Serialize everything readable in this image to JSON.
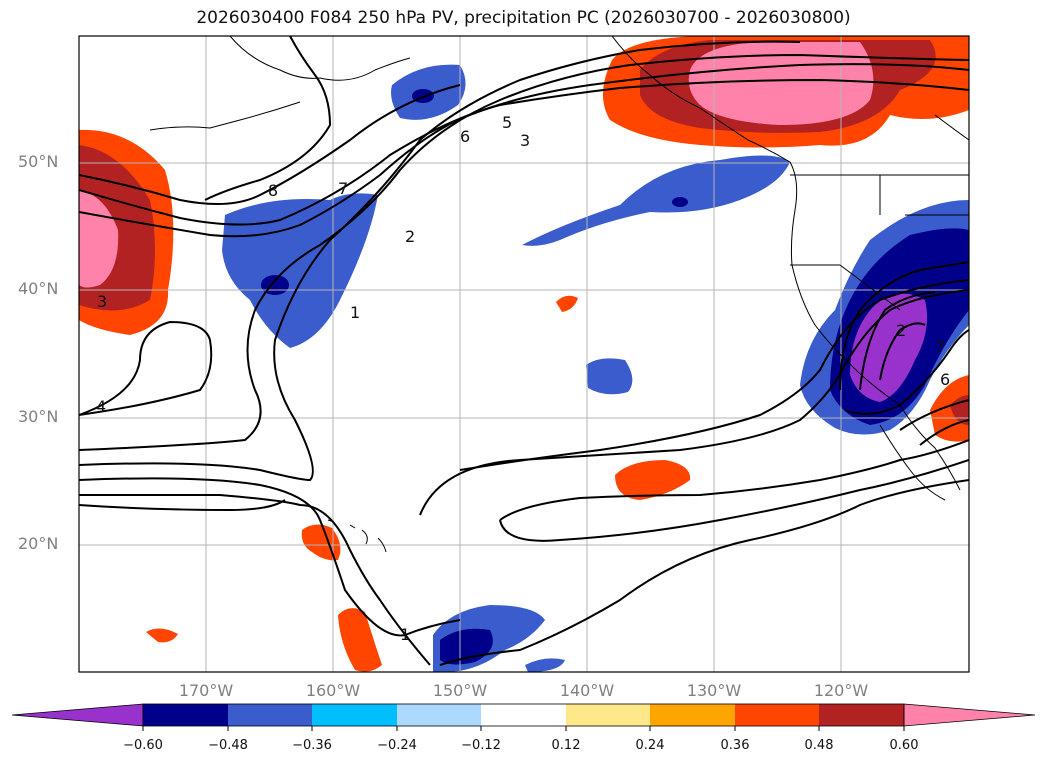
{
  "title": "2026030400 F084 250 hPa PV, precipitation PC (2026030700 - 2026030800)",
  "map": {
    "lat_labels": [
      "50°N",
      "40°N",
      "30°N",
      "20°N"
    ],
    "lon_labels": [
      "170°W",
      "160°W",
      "150°W",
      "140°W",
      "130°W",
      "120°W"
    ],
    "contour_labels": [
      "8",
      "7",
      "6",
      "5",
      "3",
      "2",
      "1",
      "4",
      "3",
      "1",
      "7",
      "6",
      "2"
    ],
    "colors": {
      "neg_extreme": "#9932CC",
      "neg_060": "#00008B",
      "neg_048": "#3A5CCC",
      "neg_036": "#00BFFF",
      "neg_024": "#ADD8FF",
      "pos_012": "#FFE88A",
      "pos_024": "#FFA500",
      "pos_036": "#FF4500",
      "pos_048": "#B22222",
      "pos_extreme": "#FF82AB"
    }
  },
  "colorbar": {
    "tick_labels": [
      "−0.60",
      "−0.48",
      "−0.36",
      "−0.24",
      "−0.12",
      "0.12",
      "0.24",
      "0.36",
      "0.48",
      "0.60"
    ],
    "colors": [
      "#9932CC",
      "#00008B",
      "#3A5CCC",
      "#00BFFF",
      "#ADD8FF",
      "#FFFFFF",
      "#FFE88A",
      "#FFA500",
      "#FF4500",
      "#B22222",
      "#FF82AB"
    ]
  }
}
